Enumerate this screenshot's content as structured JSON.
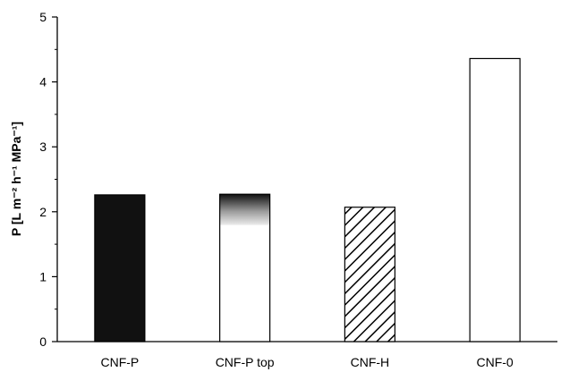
{
  "chart_data": {
    "type": "bar",
    "categories": [
      "CNF-P",
      "CNF-P top",
      "CNF-H",
      "CNF-0"
    ],
    "values": [
      2.26,
      2.27,
      2.07,
      4.36
    ],
    "bar_fills": [
      "solid-black",
      "gradient-top",
      "diagonal-hatch",
      "white"
    ],
    "colors": {
      "bar_dark": "#111111",
      "bar_outline": "#000000",
      "background": "#ffffff"
    },
    "title": "",
    "xlabel": "",
    "ylabel": "P [L m⁻² h⁻¹ MPa⁻¹]",
    "ylim": [
      0,
      5
    ],
    "yticks": [
      0,
      1,
      2,
      3,
      4,
      5
    ],
    "grid": false,
    "legend": "none"
  }
}
